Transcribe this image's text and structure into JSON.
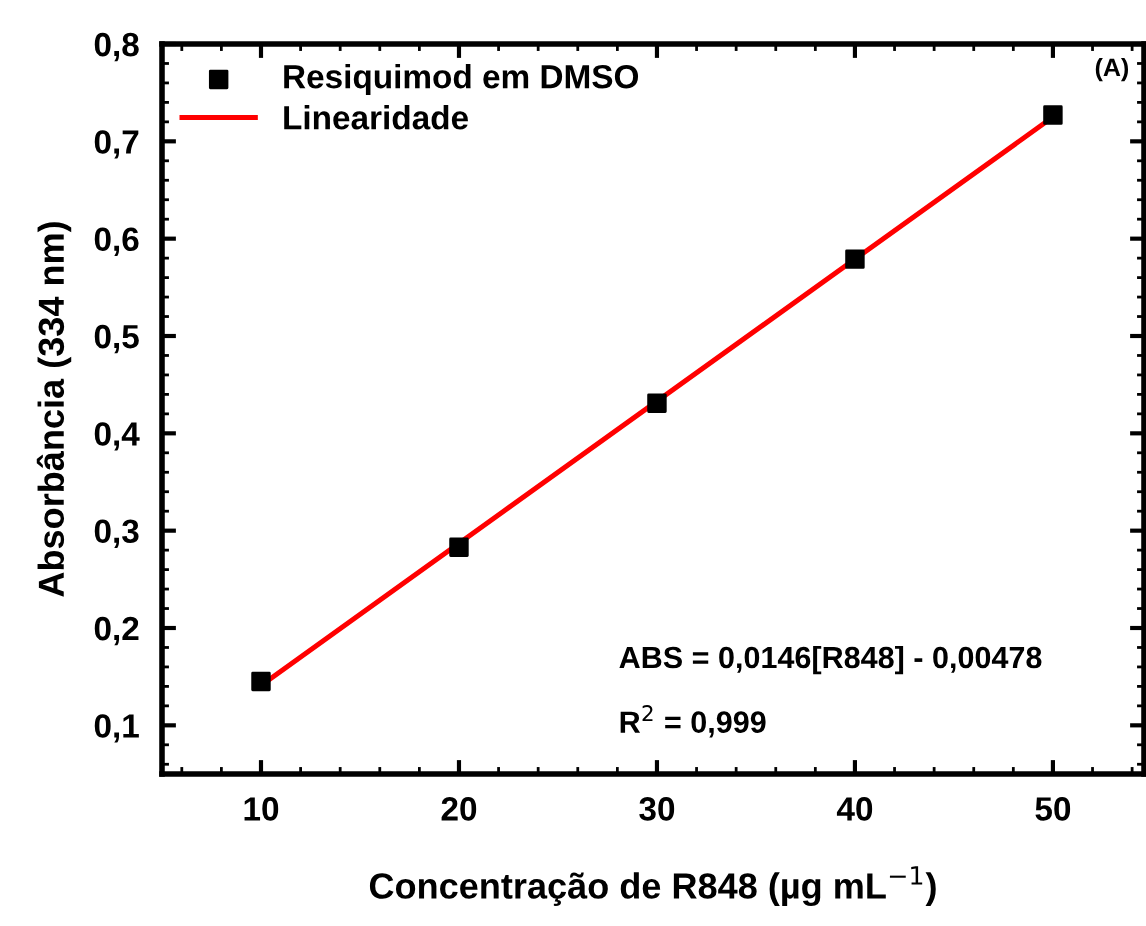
{
  "chart_data": {
    "type": "scatter",
    "xlabel": "Concentração de R848 (µg mL$^{−1}$)",
    "ylabel": "Absorbância (334 nm)",
    "x": [
      10,
      20,
      30,
      40,
      50
    ],
    "series": [
      {
        "name": "Resiquimod em DMSO",
        "color": "#000000",
        "marker": "square",
        "values": [
          0.145,
          0.283,
          0.431,
          0.579,
          0.727
        ]
      },
      {
        "name": "Linearidade",
        "type": "line",
        "color": "#ff0000",
        "marker": "none",
        "line_style": "solid",
        "x": [
          10,
          50
        ],
        "values": [
          0.141,
          0.725
        ]
      }
    ],
    "xlim": [
      5,
      54.6
    ],
    "ylim": [
      0.05,
      0.8
    ],
    "xticks": [
      10,
      20,
      30,
      40,
      50
    ],
    "yticks": [
      {
        "value": 0.1,
        "label": "0,1"
      },
      {
        "value": 0.2,
        "label": "0,2"
      },
      {
        "value": 0.3,
        "label": "0,3"
      },
      {
        "value": 0.4,
        "label": "0,4"
      },
      {
        "value": 0.5,
        "label": "0,5"
      },
      {
        "value": 0.6,
        "label": "0,6"
      },
      {
        "value": 0.7,
        "label": "0,7"
      },
      {
        "value": 0.8,
        "label": "0,8"
      }
    ],
    "annotations": [
      "(A)",
      "ABS = 0,0146[R848] - 0,00478",
      "R$^{2}$ = 0,999"
    ],
    "legend": "top left",
    "grid": false
  }
}
